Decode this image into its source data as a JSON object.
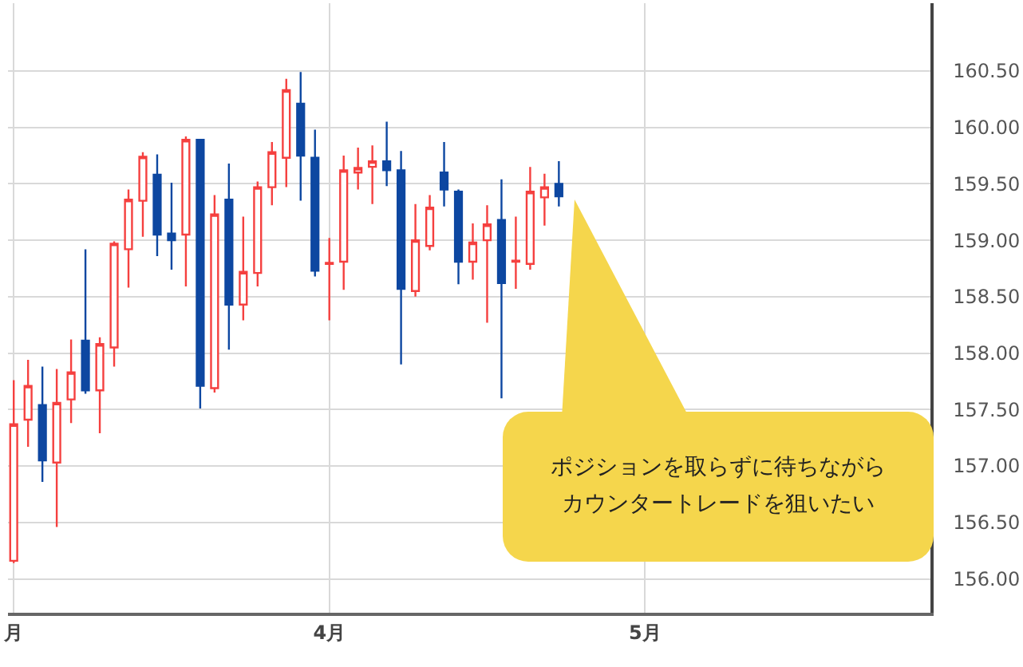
{
  "chart_data": {
    "type": "candlestick",
    "categories": [
      "月",
      null,
      null,
      null,
      null,
      null,
      null,
      null,
      null,
      null,
      null,
      null,
      null,
      null,
      null,
      null,
      null,
      null,
      null,
      null,
      null,
      null,
      "4月",
      null,
      null,
      null,
      null,
      null,
      null,
      null,
      null,
      null,
      null,
      null,
      null,
      null,
      null,
      null,
      null,
      null,
      null,
      null,
      null,
      null,
      "5月",
      null,
      null,
      null,
      null,
      null,
      null,
      null,
      null,
      null,
      null,
      null,
      null,
      null,
      null,
      null,
      null,
      null,
      null,
      null
    ],
    "ohlc": [
      [
        156.16,
        157.76,
        156.14,
        157.37
      ],
      [
        157.41,
        157.94,
        157.17,
        157.71
      ],
      [
        157.54,
        157.88,
        156.86,
        157.05
      ],
      [
        157.03,
        157.86,
        156.46,
        157.56
      ],
      [
        157.59,
        158.12,
        157.38,
        157.83
      ],
      [
        158.11,
        158.92,
        157.64,
        157.67
      ],
      [
        157.67,
        158.14,
        157.29,
        158.08
      ],
      [
        158.05,
        158.99,
        157.88,
        158.97
      ],
      [
        158.92,
        159.45,
        158.58,
        159.36
      ],
      [
        159.35,
        159.78,
        159.03,
        159.74
      ],
      [
        159.58,
        159.76,
        158.86,
        159.05
      ],
      [
        159.06,
        159.51,
        158.74,
        159.0
      ],
      [
        159.05,
        159.92,
        158.59,
        159.89
      ],
      [
        159.89,
        159.89,
        157.51,
        157.71
      ],
      [
        157.69,
        159.4,
        157.65,
        159.23
      ],
      [
        159.36,
        159.68,
        158.03,
        158.43
      ],
      [
        158.43,
        159.21,
        158.29,
        158.72
      ],
      [
        158.71,
        159.52,
        158.59,
        159.47
      ],
      [
        159.47,
        159.87,
        159.31,
        159.78
      ],
      [
        159.73,
        160.43,
        159.47,
        160.33
      ],
      [
        160.21,
        160.49,
        159.35,
        159.75
      ],
      [
        159.73,
        159.98,
        158.68,
        158.73
      ],
      [
        158.79,
        159.02,
        158.29,
        158.8
      ],
      [
        158.81,
        159.75,
        158.56,
        159.62
      ],
      [
        159.6,
        159.82,
        159.45,
        159.64
      ],
      [
        159.65,
        159.84,
        159.32,
        159.7
      ],
      [
        159.7,
        160.05,
        159.48,
        159.62
      ],
      [
        159.62,
        159.79,
        157.9,
        158.57
      ],
      [
        158.55,
        159.32,
        158.5,
        159.0
      ],
      [
        158.95,
        159.4,
        158.91,
        159.29
      ],
      [
        159.6,
        159.87,
        159.3,
        159.45
      ],
      [
        159.43,
        159.45,
        158.61,
        158.81
      ],
      [
        158.81,
        159.15,
        158.65,
        158.98
      ],
      [
        159.0,
        159.31,
        158.27,
        159.14
      ],
      [
        159.18,
        159.54,
        157.6,
        158.62
      ],
      [
        158.81,
        159.21,
        158.57,
        158.82
      ],
      [
        158.79,
        159.65,
        158.74,
        159.43
      ],
      [
        159.38,
        159.59,
        159.13,
        159.47
      ],
      [
        159.5,
        159.7,
        159.3,
        159.39
      ],
      null,
      null,
      null,
      null,
      null,
      null,
      null,
      null,
      null,
      null,
      null,
      null,
      null,
      null,
      null,
      null,
      null,
      null,
      null,
      null,
      null,
      null,
      null,
      null,
      null
    ],
    "colors": [
      "#f5403f",
      "#f5403f",
      "#0d47a1",
      "#f5403f",
      "#f5403f",
      "#0d47a1",
      "#f5403f",
      "#f5403f",
      "#f5403f",
      "#f5403f",
      "#0d47a1",
      "#0d47a1",
      "#f5403f",
      "#0d47a1",
      "#f5403f",
      "#0d47a1",
      "#f5403f",
      "#f5403f",
      "#f5403f",
      "#f5403f",
      "#0d47a1",
      "#0d47a1",
      "#f5403f",
      "#f5403f",
      "#f5403f",
      "#f5403f",
      "#0d47a1",
      "#0d47a1",
      "#f5403f",
      "#f5403f",
      "#0d47a1",
      "#0d47a1",
      "#f5403f",
      "#f5403f",
      "#0d47a1",
      "#f5403f",
      "#f5403f",
      "#f5403f",
      "#0d47a1",
      null,
      null,
      null,
      null,
      null,
      null,
      null,
      null,
      null,
      null,
      null,
      null,
      null,
      null,
      null,
      null,
      null,
      null,
      null,
      null,
      null,
      null,
      null,
      null,
      null
    ],
    "ylim": [
      155.7,
      161.1
    ],
    "yticks": [
      {
        "value": 156,
        "label": "156.00"
      },
      {
        "value": 156.5,
        "label": "156.50"
      },
      {
        "value": 157,
        "label": "157.00"
      },
      {
        "value": 157.5,
        "label": "157.50"
      },
      {
        "value": 158,
        "label": "158.00"
      },
      {
        "value": 158.5,
        "label": "158.50"
      },
      {
        "value": 159,
        "label": "159.00"
      },
      {
        "value": 159.5,
        "label": "159.50"
      },
      {
        "value": 160,
        "label": "160.00"
      },
      {
        "value": 160.5,
        "label": "160.50"
      }
    ],
    "grid": true,
    "annotations": [
      "ポジションを取らずに待ちながらカウンタートレードを狙いたい"
    ]
  }
}
